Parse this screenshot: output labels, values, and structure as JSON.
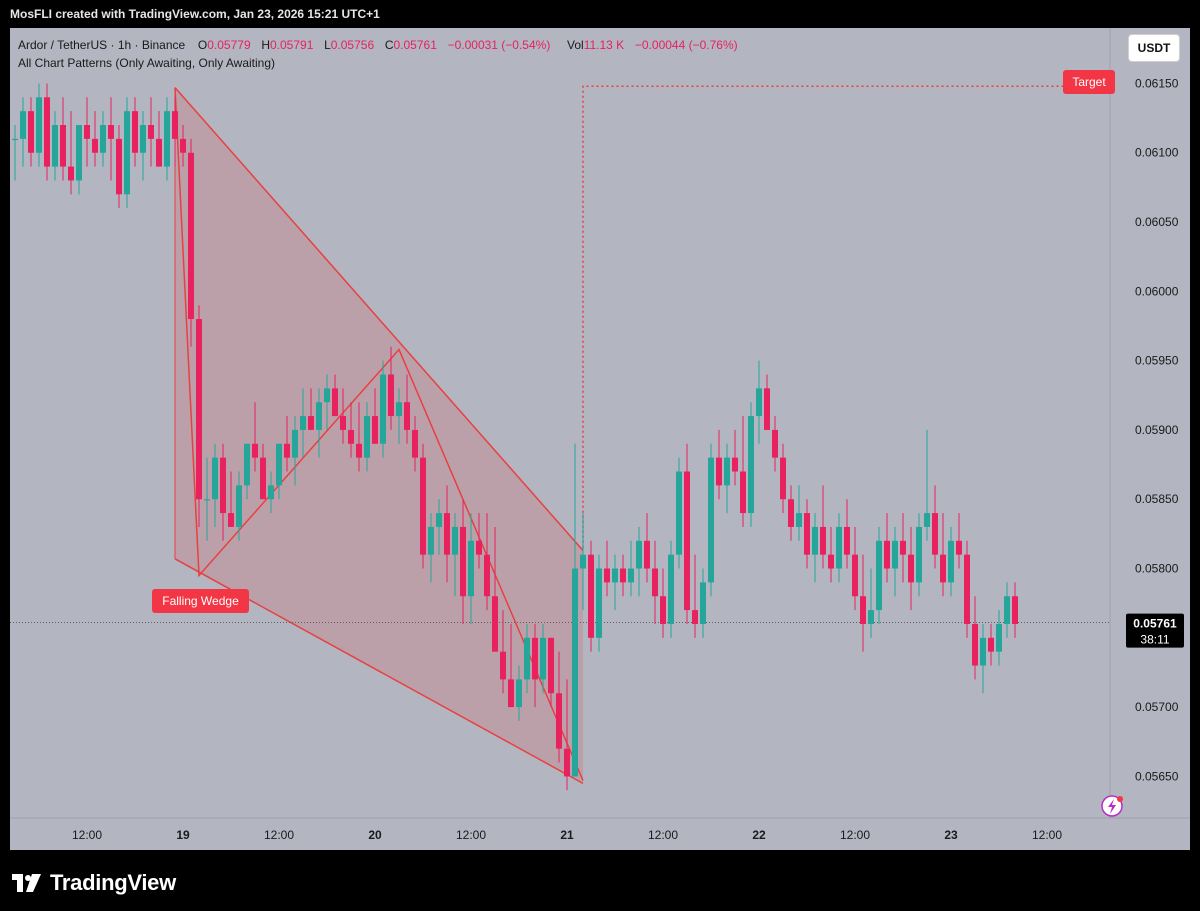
{
  "header": {
    "caption": "MosFLI created with TradingView.com, Jan 23, 2026 15:21 UTC+1"
  },
  "legend": {
    "symbol": "Ardor / TetherUS · 1h · Binance",
    "o_label": "O",
    "o_value": "0.05779",
    "h_label": "H",
    "h_value": "0.05791",
    "l_label": "L",
    "l_value": "0.05756",
    "c_label": "C",
    "c_value": "0.05761",
    "change": "−0.00031 (−0.54%)",
    "vol_label": "Vol",
    "vol_value": "11.13 K",
    "vol_change": "−0.00044 (−0.76%)",
    "indicator": "All Chart Patterns (Only Awaiting, Only Awaiting)"
  },
  "currency_button": "USDT",
  "brand": {
    "name": "TradingView"
  },
  "colors": {
    "up": "#26a69a",
    "down": "#e8215f",
    "pattern": "#e84040",
    "background": "#b3b5c0"
  },
  "chart_data": {
    "type": "candlestick",
    "ylim": [
      0.0562,
      0.0619
    ],
    "yticks": [
      {
        "value": 0.0615,
        "label": "0.06150"
      },
      {
        "value": 0.061,
        "label": "0.06100"
      },
      {
        "value": 0.0605,
        "label": "0.06050"
      },
      {
        "value": 0.06,
        "label": "0.06000"
      },
      {
        "value": 0.0595,
        "label": "0.05950"
      },
      {
        "value": 0.059,
        "label": "0.05900"
      },
      {
        "value": 0.0585,
        "label": "0.05850"
      },
      {
        "value": 0.058,
        "label": "0.05800"
      },
      {
        "value": 0.057,
        "label": "0.05700"
      },
      {
        "value": 0.0565,
        "label": "0.05650"
      }
    ],
    "xticks": [
      {
        "index": 9,
        "label": "12:00"
      },
      {
        "index": 21,
        "label": "19",
        "bold": true
      },
      {
        "index": 33,
        "label": "12:00"
      },
      {
        "index": 45,
        "label": "20",
        "bold": true
      },
      {
        "index": 57,
        "label": "12:00"
      },
      {
        "index": 69,
        "label": "21",
        "bold": true
      },
      {
        "index": 81,
        "label": "12:00"
      },
      {
        "index": 93,
        "label": "22",
        "bold": true
      },
      {
        "index": 105,
        "label": "12:00"
      },
      {
        "index": 117,
        "label": "23",
        "bold": true
      },
      {
        "index": 129,
        "label": "12:00"
      }
    ],
    "last_price": {
      "label": "0.05761",
      "countdown": "38:11",
      "value": 0.05761
    },
    "pattern": {
      "name": "Falling Wedge",
      "target_label": "Target",
      "target_value": 0.06148,
      "vertices": [
        {
          "index": 20,
          "value": 0.06147
        },
        {
          "index": 23,
          "value": 0.05795
        },
        {
          "index": 48,
          "value": 0.05958
        },
        {
          "index": 71,
          "value": 0.05647
        }
      ],
      "upper": [
        {
          "index": 20,
          "value": 0.06147
        },
        {
          "index": 71,
          "value": 0.05813
        }
      ],
      "lower": [
        {
          "index": 20,
          "value": 0.05807
        },
        {
          "index": 71,
          "value": 0.05645
        }
      ],
      "breakout": {
        "index": 71,
        "value": 0.05815
      }
    },
    "candles": [
      [
        0.0611,
        0.0612,
        0.0608,
        0.0611
      ],
      [
        0.0611,
        0.0614,
        0.0609,
        0.0613
      ],
      [
        0.0613,
        0.0614,
        0.0609,
        0.061
      ],
      [
        0.061,
        0.0615,
        0.0609,
        0.0614
      ],
      [
        0.0614,
        0.0615,
        0.0608,
        0.0609
      ],
      [
        0.0609,
        0.0613,
        0.0608,
        0.0612
      ],
      [
        0.0612,
        0.0614,
        0.0608,
        0.0609
      ],
      [
        0.0609,
        0.0613,
        0.0607,
        0.0608
      ],
      [
        0.0608,
        0.0612,
        0.0607,
        0.0612
      ],
      [
        0.0612,
        0.0614,
        0.0609,
        0.0611
      ],
      [
        0.0611,
        0.0613,
        0.0609,
        0.061
      ],
      [
        0.061,
        0.0613,
        0.0609,
        0.0612
      ],
      [
        0.0612,
        0.0614,
        0.0608,
        0.0611
      ],
      [
        0.0611,
        0.0612,
        0.0606,
        0.0607
      ],
      [
        0.0607,
        0.0614,
        0.0606,
        0.0613
      ],
      [
        0.0613,
        0.0614,
        0.0609,
        0.061
      ],
      [
        0.061,
        0.0613,
        0.0608,
        0.0612
      ],
      [
        0.0612,
        0.0614,
        0.0609,
        0.0611
      ],
      [
        0.0611,
        0.0613,
        0.0609,
        0.0609
      ],
      [
        0.0609,
        0.0614,
        0.0608,
        0.0613
      ],
      [
        0.0613,
        0.0614,
        0.0609,
        0.0611
      ],
      [
        0.0611,
        0.0612,
        0.0609,
        0.061
      ],
      [
        0.061,
        0.0611,
        0.0596,
        0.0598
      ],
      [
        0.0598,
        0.0599,
        0.0583,
        0.0585
      ],
      [
        0.0585,
        0.0588,
        0.0582,
        0.0585
      ],
      [
        0.0585,
        0.0589,
        0.0583,
        0.0588
      ],
      [
        0.0588,
        0.0589,
        0.0582,
        0.0584
      ],
      [
        0.0584,
        0.0587,
        0.0583,
        0.0583
      ],
      [
        0.0583,
        0.0587,
        0.0582,
        0.0586
      ],
      [
        0.0586,
        0.0589,
        0.0585,
        0.0589
      ],
      [
        0.0589,
        0.0592,
        0.0587,
        0.0588
      ],
      [
        0.0588,
        0.0589,
        0.0585,
        0.0585
      ],
      [
        0.0585,
        0.0587,
        0.0584,
        0.0586
      ],
      [
        0.0586,
        0.0589,
        0.0585,
        0.0589
      ],
      [
        0.0589,
        0.0591,
        0.0587,
        0.0588
      ],
      [
        0.0588,
        0.0591,
        0.0586,
        0.059
      ],
      [
        0.059,
        0.0593,
        0.0588,
        0.0591
      ],
      [
        0.0591,
        0.0593,
        0.059,
        0.059
      ],
      [
        0.059,
        0.0593,
        0.0588,
        0.0592
      ],
      [
        0.0592,
        0.0594,
        0.059,
        0.0593
      ],
      [
        0.0593,
        0.0594,
        0.0591,
        0.0591
      ],
      [
        0.0591,
        0.0593,
        0.0589,
        0.059
      ],
      [
        0.059,
        0.0592,
        0.0588,
        0.0589
      ],
      [
        0.0589,
        0.0592,
        0.0587,
        0.0588
      ],
      [
        0.0588,
        0.0592,
        0.0587,
        0.0591
      ],
      [
        0.0591,
        0.0593,
        0.0589,
        0.0589
      ],
      [
        0.0589,
        0.0595,
        0.0588,
        0.0594
      ],
      [
        0.0594,
        0.0596,
        0.059,
        0.0591
      ],
      [
        0.0591,
        0.0593,
        0.0589,
        0.0592
      ],
      [
        0.0592,
        0.0594,
        0.0589,
        0.059
      ],
      [
        0.059,
        0.0591,
        0.0587,
        0.0588
      ],
      [
        0.0588,
        0.0589,
        0.058,
        0.0581
      ],
      [
        0.0581,
        0.0584,
        0.0579,
        0.0583
      ],
      [
        0.0583,
        0.0585,
        0.0581,
        0.0584
      ],
      [
        0.0584,
        0.0586,
        0.0579,
        0.0581
      ],
      [
        0.0581,
        0.0584,
        0.0578,
        0.0583
      ],
      [
        0.0583,
        0.0585,
        0.0576,
        0.0578
      ],
      [
        0.0578,
        0.0584,
        0.0576,
        0.0582
      ],
      [
        0.0582,
        0.0584,
        0.058,
        0.0581
      ],
      [
        0.0581,
        0.0584,
        0.0577,
        0.0578
      ],
      [
        0.0578,
        0.0583,
        0.0574,
        0.0574
      ],
      [
        0.0574,
        0.0577,
        0.0571,
        0.0572
      ],
      [
        0.0572,
        0.0576,
        0.057,
        0.057
      ],
      [
        0.057,
        0.0573,
        0.0569,
        0.0572
      ],
      [
        0.0572,
        0.0576,
        0.0571,
        0.0575
      ],
      [
        0.0575,
        0.0576,
        0.057,
        0.0572
      ],
      [
        0.0572,
        0.0576,
        0.0571,
        0.0575
      ],
      [
        0.0575,
        0.0575,
        0.057,
        0.0571
      ],
      [
        0.0571,
        0.0574,
        0.0566,
        0.0567
      ],
      [
        0.0567,
        0.0572,
        0.0564,
        0.0565
      ],
      [
        0.0565,
        0.0589,
        0.0565,
        0.058
      ],
      [
        0.058,
        0.0584,
        0.0577,
        0.0581
      ],
      [
        0.0581,
        0.0582,
        0.0574,
        0.0575
      ],
      [
        0.0575,
        0.0581,
        0.0574,
        0.058
      ],
      [
        0.058,
        0.0582,
        0.0578,
        0.0579
      ],
      [
        0.0579,
        0.0581,
        0.0577,
        0.058
      ],
      [
        0.058,
        0.0581,
        0.0578,
        0.0579
      ],
      [
        0.0579,
        0.0582,
        0.0578,
        0.058
      ],
      [
        0.058,
        0.0583,
        0.0578,
        0.0582
      ],
      [
        0.0582,
        0.0584,
        0.0579,
        0.058
      ],
      [
        0.058,
        0.0582,
        0.0576,
        0.0578
      ],
      [
        0.0578,
        0.058,
        0.0575,
        0.0576
      ],
      [
        0.0576,
        0.0582,
        0.0575,
        0.0581
      ],
      [
        0.0581,
        0.0588,
        0.058,
        0.0587
      ],
      [
        0.0587,
        0.0589,
        0.0576,
        0.0577
      ],
      [
        0.0577,
        0.0581,
        0.0575,
        0.0576
      ],
      [
        0.0576,
        0.058,
        0.0575,
        0.0579
      ],
      [
        0.0579,
        0.0589,
        0.0578,
        0.0588
      ],
      [
        0.0588,
        0.059,
        0.0585,
        0.0586
      ],
      [
        0.0586,
        0.0589,
        0.0584,
        0.0588
      ],
      [
        0.0588,
        0.059,
        0.0586,
        0.0587
      ],
      [
        0.0587,
        0.0591,
        0.0583,
        0.0584
      ],
      [
        0.0584,
        0.0592,
        0.0583,
        0.0591
      ],
      [
        0.0591,
        0.0595,
        0.0589,
        0.0593
      ],
      [
        0.0593,
        0.0594,
        0.059,
        0.059
      ],
      [
        0.059,
        0.0591,
        0.0587,
        0.0588
      ],
      [
        0.0588,
        0.0589,
        0.0584,
        0.0585
      ],
      [
        0.0585,
        0.0586,
        0.0582,
        0.0583
      ],
      [
        0.0583,
        0.0586,
        0.0582,
        0.0584
      ],
      [
        0.0584,
        0.0585,
        0.058,
        0.0581
      ],
      [
        0.0581,
        0.0584,
        0.0579,
        0.0583
      ],
      [
        0.0583,
        0.0586,
        0.058,
        0.0581
      ],
      [
        0.0581,
        0.0583,
        0.0579,
        0.058
      ],
      [
        0.058,
        0.0584,
        0.0579,
        0.0583
      ],
      [
        0.0583,
        0.0585,
        0.058,
        0.0581
      ],
      [
        0.0581,
        0.0583,
        0.0577,
        0.0578
      ],
      [
        0.0578,
        0.0581,
        0.0574,
        0.0576
      ],
      [
        0.0576,
        0.058,
        0.0575,
        0.0577
      ],
      [
        0.0577,
        0.0583,
        0.0576,
        0.0582
      ],
      [
        0.0582,
        0.0584,
        0.0579,
        0.058
      ],
      [
        0.058,
        0.0583,
        0.0578,
        0.0582
      ],
      [
        0.0582,
        0.0584,
        0.0579,
        0.0581
      ],
      [
        0.0581,
        0.0583,
        0.0577,
        0.0579
      ],
      [
        0.0579,
        0.0584,
        0.0578,
        0.0583
      ],
      [
        0.0583,
        0.059,
        0.0582,
        0.0584
      ],
      [
        0.0584,
        0.0586,
        0.058,
        0.0581
      ],
      [
        0.0581,
        0.0584,
        0.0578,
        0.0579
      ],
      [
        0.0579,
        0.0583,
        0.0578,
        0.0582
      ],
      [
        0.0582,
        0.0584,
        0.058,
        0.0581
      ],
      [
        0.0581,
        0.0582,
        0.0575,
        0.0576
      ],
      [
        0.0576,
        0.0578,
        0.0572,
        0.0573
      ],
      [
        0.0573,
        0.0576,
        0.0571,
        0.0575
      ],
      [
        0.0575,
        0.0576,
        0.0573,
        0.0574
      ],
      [
        0.0574,
        0.0577,
        0.0573,
        0.0576
      ],
      [
        0.0576,
        0.0579,
        0.0575,
        0.0578
      ],
      [
        0.0578,
        0.0579,
        0.0575,
        0.0576
      ]
    ]
  }
}
